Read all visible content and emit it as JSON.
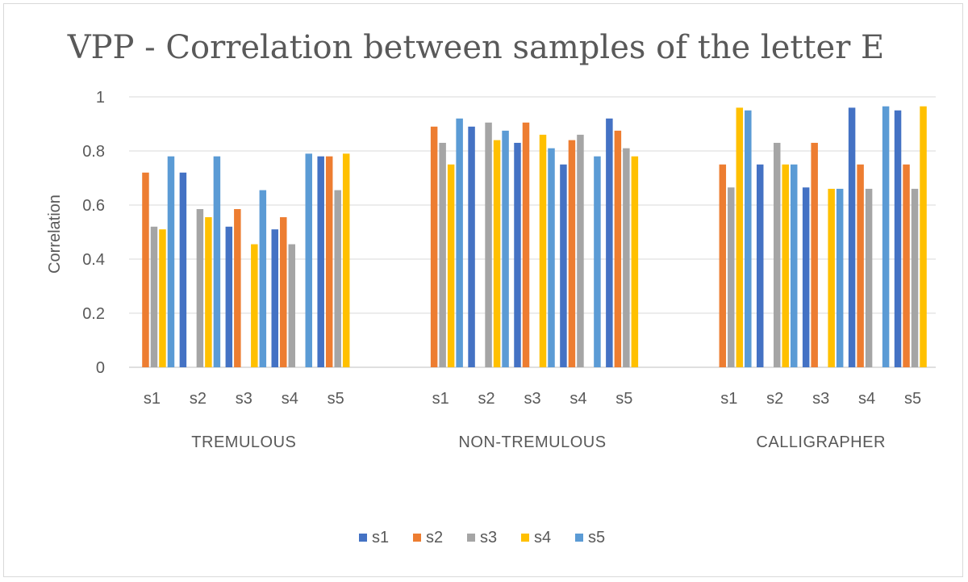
{
  "chart_data": {
    "type": "bar",
    "title": "VPP - Correlation between samples of the letter E",
    "xlabel": "",
    "ylabel": "Correlation",
    "ylim": [
      0,
      1
    ],
    "yticks": [
      0,
      0.2,
      0.4,
      0.6,
      0.8,
      1
    ],
    "ytick_labels": [
      "0",
      "0.2",
      "0.4",
      "0.6",
      "0.8",
      "1"
    ],
    "grid": true,
    "legend_position": "bottom",
    "colors": [
      "#4472c4",
      "#ed7d31",
      "#a5a5a5",
      "#ffc000",
      "#5b9bd5"
    ],
    "groups": [
      {
        "name": "TREMULOUS",
        "categories": [
          "s1",
          "s2",
          "s3",
          "s4",
          "s5"
        ],
        "series": [
          {
            "name": "s1",
            "values": [
              0,
              0.72,
              0.52,
              0.51,
              0.78
            ]
          },
          {
            "name": "s2",
            "values": [
              0.72,
              0,
              0.585,
              0.555,
              0.78
            ]
          },
          {
            "name": "s3",
            "values": [
              0.52,
              0.585,
              0,
              0.455,
              0.655
            ]
          },
          {
            "name": "s4",
            "values": [
              0.51,
              0.555,
              0.455,
              0,
              0.79
            ]
          },
          {
            "name": "s5",
            "values": [
              0.78,
              0.78,
              0.655,
              0.79,
              0
            ]
          }
        ]
      },
      {
        "name": "NON-TREMULOUS",
        "categories": [
          "s1",
          "s2",
          "s3",
          "s4",
          "s5"
        ],
        "series": [
          {
            "name": "s1",
            "values": [
              0,
              0.89,
              0.83,
              0.75,
              0.92
            ]
          },
          {
            "name": "s2",
            "values": [
              0.89,
              0,
              0.905,
              0.84,
              0.875
            ]
          },
          {
            "name": "s3",
            "values": [
              0.83,
              0.905,
              0,
              0.86,
              0.81
            ]
          },
          {
            "name": "s4",
            "values": [
              0.75,
              0.84,
              0.86,
              0,
              0.78
            ]
          },
          {
            "name": "s5",
            "values": [
              0.92,
              0.875,
              0.81,
              0.78,
              0
            ]
          }
        ]
      },
      {
        "name": "CALLIGRAPHER",
        "categories": [
          "s1",
          "s2",
          "s3",
          "s4",
          "s5"
        ],
        "series": [
          {
            "name": "s1",
            "values": [
              0,
              0.75,
              0.665,
              0.96,
              0.95
            ]
          },
          {
            "name": "s2",
            "values": [
              0.75,
              0,
              0.83,
              0.75,
              0.75
            ]
          },
          {
            "name": "s3",
            "values": [
              0.665,
              0.83,
              0,
              0.66,
              0.66
            ]
          },
          {
            "name": "s4",
            "values": [
              0.96,
              0.75,
              0.66,
              0,
              0.965
            ]
          },
          {
            "name": "s5",
            "values": [
              0.95,
              0.75,
              0.66,
              0.965,
              0
            ]
          }
        ]
      }
    ],
    "legend": [
      "s1",
      "s2",
      "s3",
      "s4",
      "s5"
    ]
  }
}
